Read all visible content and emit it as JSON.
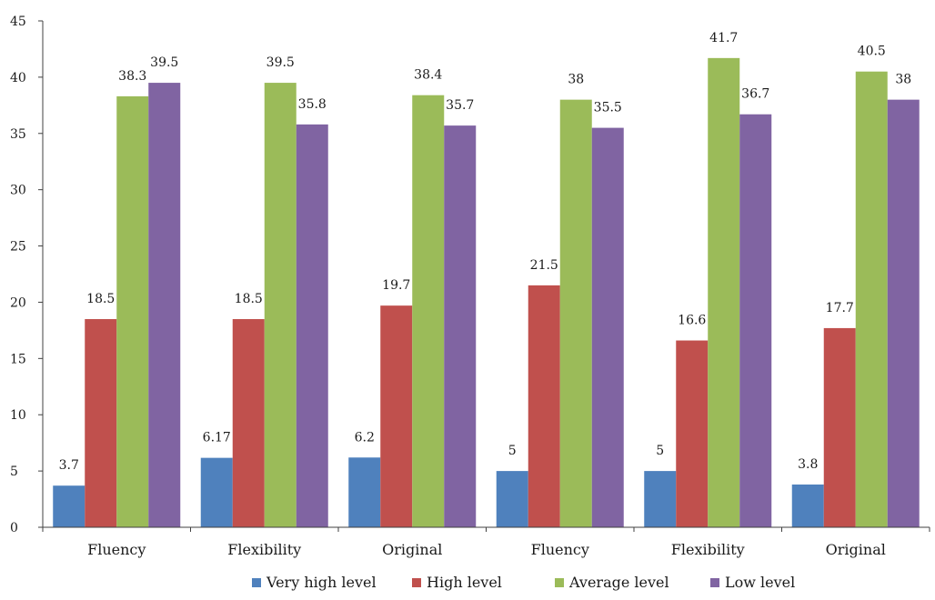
{
  "chart_data": {
    "type": "bar",
    "categories": [
      "Fluency",
      "Flexibility",
      "Original",
      "Fluency",
      "Flexibility",
      "Original"
    ],
    "series": [
      {
        "name": "Very high level",
        "color": "#4F81BD",
        "values": [
          3.7,
          6.17,
          6.2,
          5,
          5,
          3.8
        ],
        "labels": [
          "3.7",
          "6.17",
          "6.2",
          "5",
          "5",
          "3.8"
        ]
      },
      {
        "name": "High level",
        "color": "#C0504D",
        "values": [
          18.5,
          18.5,
          19.7,
          21.5,
          16.6,
          17.7
        ],
        "labels": [
          "18.5",
          "18.5",
          "19.7",
          "21.5",
          "16.6",
          "17.7"
        ]
      },
      {
        "name": "Average level",
        "color": "#9BBB59",
        "values": [
          38.3,
          39.5,
          38.4,
          38,
          41.7,
          40.5
        ],
        "labels": [
          "38.3",
          "39.5",
          "38.4",
          "38",
          "41.7",
          "40.5"
        ]
      },
      {
        "name": "Low level",
        "color": "#8064A2",
        "values": [
          39.5,
          35.8,
          35.7,
          35.5,
          36.7,
          38
        ],
        "labels": [
          "39.5",
          "35.8",
          "35.7",
          "35.5",
          "36.7",
          "38"
        ]
      }
    ],
    "y_ticks": [
      "0",
      "5",
      "10",
      "15",
      "20",
      "25",
      "30",
      "35",
      "40",
      "45"
    ],
    "ylim": [
      0,
      45
    ],
    "grid": false,
    "legend_position": "bottom"
  }
}
